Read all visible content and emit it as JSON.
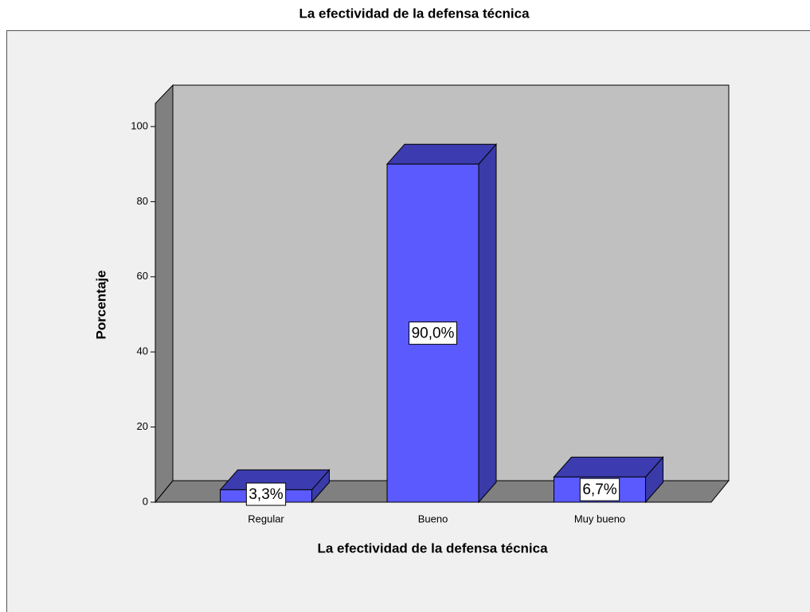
{
  "chart_data": {
    "type": "bar3d",
    "title": "La efectividad de la defensa técnica",
    "x_label": "La efectividad de la defensa técnica",
    "y_label": "Porcentaje",
    "categories": [
      "Regular",
      "Bueno",
      "Muy bueno"
    ],
    "values": [
      3.3,
      90.0,
      6.7
    ],
    "value_labels": [
      "3,3%",
      "90,0%",
      "6,7%"
    ],
    "color": "#5a5aff",
    "ylim": [
      0,
      106
    ],
    "yticks": [
      0,
      20,
      40,
      60,
      80,
      100
    ]
  }
}
